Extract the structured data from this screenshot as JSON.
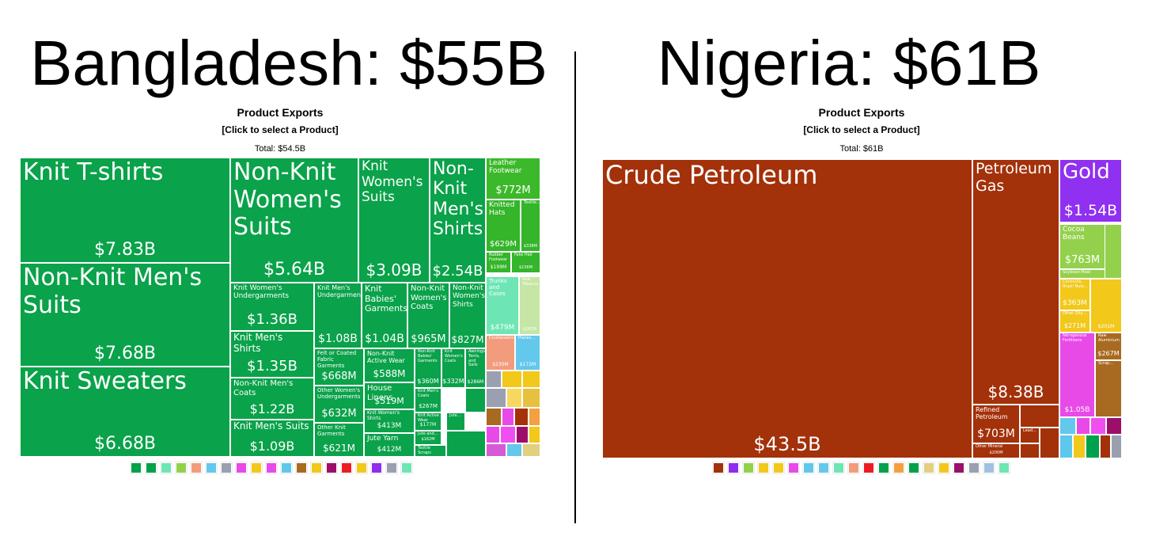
{
  "chart_data": [
    {
      "type": "treemap",
      "heading": "Bangladesh: $55B",
      "title": "Product Exports",
      "subtitle": "[Click to select a Product]",
      "total": "Total: $54.5B",
      "categories": [
        "Knit T-shirts",
        "Non-Knit Men's Suits",
        "Knit Sweaters",
        "Non-Knit Women's Suits",
        "Knit Women's Suits",
        "Non-Knit Men's Shirts",
        "Knit Women's Undergarments",
        "Knit Men's Shirts",
        "Non-Knit Men's Coats",
        "Knit Men's Suits",
        "Knit Men's Undergarments",
        "Knit Babies' Garments",
        "Non-Knit Women's Coats",
        "Non-Knit Women's Shirts",
        "Felt or Coated Fabric Garments",
        "Other Women's Undergarments",
        "Other Knit Garments",
        "Non-Knit Active Wear",
        "House Linens",
        "Knit Women's Shirts",
        "Jute Yarn",
        "Non-Knit Babies' Garments",
        "Knit Women's Coats",
        "Awnings, Tents, and Sails",
        "Knit Men's Coats",
        "Knit Active Wear",
        "Jute and...",
        "Textile Scraps",
        "Jute...",
        "Leather Footwear",
        "Knitted Hats",
        "Textile...",
        "Rubber Footwear",
        "Fake Hair",
        "Trunks and Cases",
        "Raw Tobacco",
        "Crustaceans",
        "Planes..."
      ],
      "values": [
        7830000000,
        7680000000,
        6680000000,
        5640000000,
        3090000000,
        2540000000,
        1360000000,
        1350000000,
        1220000000,
        1090000000,
        1080000000,
        1040000000,
        965000000,
        827000000,
        668000000,
        632000000,
        621000000,
        588000000,
        519000000,
        413000000,
        412000000,
        360000000,
        332000000,
        286000000,
        267000000,
        177000000,
        162000000,
        null,
        null,
        772000000,
        629000000,
        338000000,
        199000000,
        156000000,
        479000000,
        181000000,
        230000000,
        172000000
      ],
      "value_labels": [
        "$7.83B",
        "$7.68B",
        "$6.68B",
        "$5.64B",
        "$3.09B",
        "$2.54B",
        "$1.36B",
        "$1.35B",
        "$1.22B",
        "$1.09B",
        "$1.08B",
        "$1.04B",
        "$965M",
        "$827M",
        "$668M",
        "$632M",
        "$621M",
        "$588M",
        "$519M",
        "$413M",
        "$412M",
        "$360M",
        "$332M",
        "$286M",
        "$267M",
        "$177M",
        "$162M",
        null,
        null,
        "$772M",
        "$629M",
        "$338M",
        "$199M",
        "$156M",
        "$479M",
        "$181M",
        "$230M",
        "$172M"
      ]
    },
    {
      "type": "treemap",
      "heading": "Nigeria: $61B",
      "title": "Product Exports",
      "subtitle": "[Click to select a Product]",
      "total": "Total: $61B",
      "categories": [
        "Crude Petroleum",
        "Petroleum Gas",
        "Refined Petroleum",
        "Other Mineral",
        "Lead...",
        "Gold",
        "Cocoa Beans",
        "Soybean Meal",
        "Coconuts, Brazil Nuts...",
        "Other Oily...",
        null,
        "Nitrogenous Fertilizers",
        "Raw Aluminium",
        "Scrap..."
      ],
      "values": [
        43500000000,
        8380000000,
        703000000,
        200000000,
        null,
        1540000000,
        763000000,
        null,
        363000000,
        271000000,
        201000000,
        1050000000,
        267000000,
        null
      ],
      "value_labels": [
        "$43.5B",
        "$8.38B",
        "$703M",
        "$200M",
        null,
        "$1.54B",
        "$763M",
        null,
        "$363M",
        "$271M",
        "$201M",
        "$1.05B",
        "$267M",
        null
      ]
    }
  ]
}
